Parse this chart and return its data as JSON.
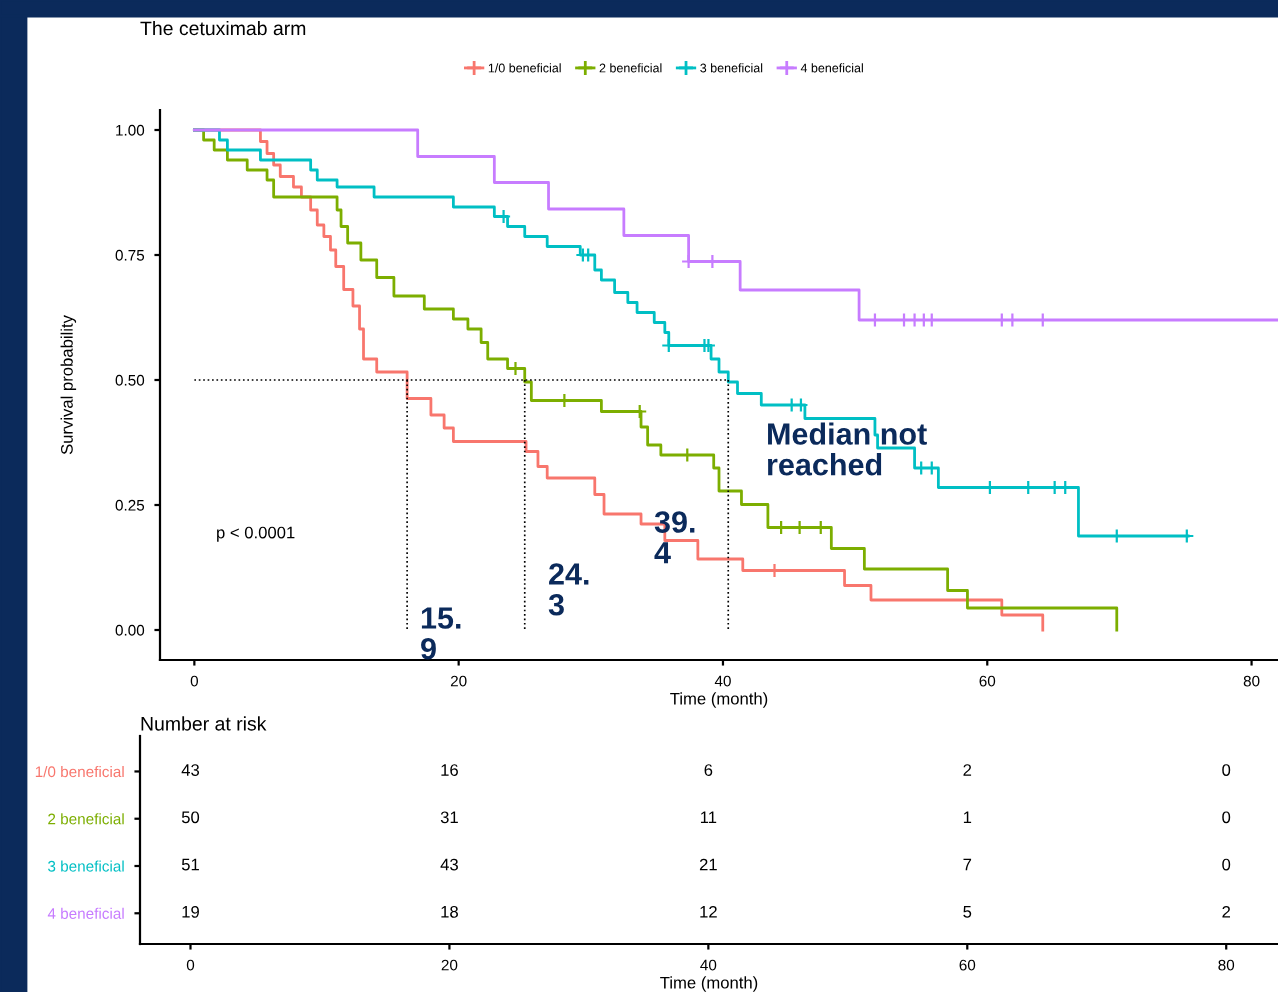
{
  "chart_data": [
    {
      "type": "step",
      "title": "The cetuximab arm",
      "xlabel": "Time (month)",
      "ylabel": "Survival probability",
      "xlim": [
        -2.6,
        82
      ],
      "ylim": [
        -0.06,
        1.04
      ],
      "xticks": [
        0,
        20,
        40,
        60,
        80
      ],
      "yticks": [
        {
          "value": 0,
          "label": "0.00"
        },
        {
          "value": 0.25,
          "label": "0.25"
        },
        {
          "value": 0.5,
          "label": "0.50"
        },
        {
          "value": 0.75,
          "label": "0.75"
        },
        {
          "value": 1,
          "label": "1.00"
        }
      ],
      "grid": false,
      "legend": "top",
      "marker": "cross",
      "series": [
        {
          "name": "1/0 beneficial",
          "color": "#f8766d",
          "marker": "none",
          "x": [
            0,
            5,
            5.5,
            6,
            6.5,
            7.5,
            8.1,
            8.8,
            9.3,
            9.8,
            10.3,
            10.7,
            11.3,
            12,
            12.5,
            12.8,
            13.8,
            16.1,
            17.9,
            18.9,
            19.6,
            25.1,
            26,
            26.7,
            30.3,
            31,
            33.8,
            35.6,
            38.1,
            41.5,
            49.2,
            51.2,
            61.1,
            64.2
          ],
          "values": [
            1,
            0.977,
            0.953,
            0.93,
            0.907,
            0.886,
            0.866,
            0.84,
            0.81,
            0.787,
            0.76,
            0.727,
            0.681,
            0.648,
            0.602,
            0.542,
            0.516,
            0.463,
            0.43,
            0.404,
            0.377,
            0.357,
            0.327,
            0.304,
            0.271,
            0.232,
            0.212,
            0.179,
            0.142,
            0.119,
            0.089,
            0.06,
            0.03,
            0
          ]
        },
        {
          "name": "2 beneficial",
          "color": "#7cae00",
          "marker": "none",
          "x": [
            0,
            0.7,
            1.5,
            2.5,
            4,
            5.5,
            6,
            10.8,
            11.1,
            11.6,
            12.6,
            13.8,
            15.1,
            17.4,
            19.6,
            20.7,
            21.7,
            22.2,
            23.7,
            25,
            25.5,
            30.8,
            33.8,
            34.3,
            35.3,
            39.3,
            39.7,
            41.4,
            43.4,
            48.2,
            50.7,
            57,
            58.5,
            69.8
          ],
          "values": [
            1,
            0.98,
            0.96,
            0.94,
            0.92,
            0.9,
            0.866,
            0.84,
            0.807,
            0.774,
            0.74,
            0.705,
            0.668,
            0.642,
            0.622,
            0.602,
            0.575,
            0.542,
            0.523,
            0.496,
            0.459,
            0.437,
            0.406,
            0.37,
            0.35,
            0.324,
            0.278,
            0.251,
            0.205,
            0.163,
            0.122,
            0.079,
            0.044,
            0
          ]
        },
        {
          "name": "3 beneficial",
          "color": "#00bfc4",
          "marker": "none",
          "x": [
            0,
            1.9,
            2.5,
            5,
            8.8,
            9.3,
            10.8,
            13.6,
            19.6,
            22.7,
            23.7,
            25,
            26.7,
            29.2,
            30.3,
            30.8,
            31.8,
            32.8,
            33.5,
            34.8,
            35.6,
            35.9,
            39.1,
            39.7,
            40.4,
            41.1,
            42.9,
            46.2,
            51.5,
            51.7,
            54.5,
            56.3,
            66.9,
            75.2
          ],
          "values": [
            1,
            0.98,
            0.96,
            0.94,
            0.92,
            0.9,
            0.886,
            0.866,
            0.846,
            0.827,
            0.807,
            0.787,
            0.767,
            0.75,
            0.72,
            0.7,
            0.675,
            0.655,
            0.635,
            0.615,
            0.595,
            0.569,
            0.542,
            0.516,
            0.496,
            0.473,
            0.45,
            0.423,
            0.39,
            0.364,
            0.324,
            0.285,
            0.188,
            0.188
          ]
        },
        {
          "name": "4 beneficial",
          "color": "#c77cff",
          "marker": "none",
          "x": [
            0,
            16.9,
            22.7,
            26.8,
            32.5,
            37.4,
            41.3,
            50.3,
            82
          ],
          "values": [
            1,
            0.947,
            0.895,
            0.842,
            0.789,
            0.737,
            0.68,
            0.62,
            0.62
          ]
        },
        {
          "type": "scatter",
          "color": "#f8766d",
          "x": [
            43.9
          ],
          "values": [
            0.119
          ]
        },
        {
          "type": "scatter",
          "color": "#7cae00",
          "x": [
            24.3,
            28,
            33.7,
            37.3,
            44.4,
            45.8,
            47.4
          ],
          "values": [
            0.523,
            0.459,
            0.437,
            0.35,
            0.205,
            0.205,
            0.205
          ]
        },
        {
          "type": "scatter",
          "color": "#00bfc4",
          "x": [
            23.4,
            29.4,
            29.8,
            35.9,
            38.6,
            38.9,
            45.2,
            45.9,
            55,
            55.8,
            60.2,
            63.1,
            65.1,
            65.9,
            69.8,
            75.1
          ],
          "values": [
            0.827,
            0.75,
            0.75,
            0.569,
            0.569,
            0.569,
            0.45,
            0.45,
            0.324,
            0.324,
            0.285,
            0.285,
            0.285,
            0.285,
            0.188,
            0.188
          ]
        },
        {
          "type": "scatter",
          "color": "#c77cff",
          "x": [
            37.4,
            39.2,
            51.5,
            53.7,
            54.5,
            55.2,
            55.8,
            61.1,
            61.9,
            64.2
          ],
          "values": [
            0.737,
            0.737,
            0.62,
            0.62,
            0.62,
            0.62,
            0.62,
            0.62,
            0.62,
            0.62
          ]
        },
        {
          "type": "line",
          "line_style": "dotted",
          "color": "#000000",
          "marker": "none",
          "x": [
            0,
            40.4
          ],
          "values": [
            0.5,
            0.5
          ]
        },
        {
          "type": "line",
          "line_style": "dotted",
          "color": "#000000",
          "marker": "none",
          "x": [
            16.1,
            16.1
          ],
          "values": [
            0.5,
            0
          ]
        },
        {
          "type": "line",
          "line_style": "dotted",
          "color": "#000000",
          "marker": "none",
          "x": [
            25,
            25
          ],
          "values": [
            0.5,
            0
          ]
        },
        {
          "type": "line",
          "line_style": "dotted",
          "color": "#000000",
          "marker": "none",
          "x": [
            40.4,
            40.4
          ],
          "values": [
            0.5,
            0
          ]
        }
      ],
      "annotations": [
        "p < 0.0001",
        "15.\n9",
        "24.\n3",
        "39.\n4",
        "Median not\nreached"
      ]
    },
    {
      "type": "heatmap",
      "title": "Number at risk",
      "xlabel": "Time (month)",
      "data_labels": true,
      "categories": [
        "0",
        "20",
        "40",
        "60",
        "80"
      ],
      "y_categories": [
        "1/0 beneficial",
        "2 beneficial",
        "3 beneficial",
        "4 beneficial"
      ],
      "colors": [
        "#f8766d",
        "#7cae00",
        "#00bfc4",
        "#c77cff"
      ],
      "cells": [
        [
          43,
          16,
          6,
          2,
          0
        ],
        [
          50,
          31,
          11,
          1,
          0
        ],
        [
          51,
          43,
          21,
          7,
          0
        ],
        [
          19,
          18,
          12,
          5,
          2
        ]
      ]
    }
  ]
}
